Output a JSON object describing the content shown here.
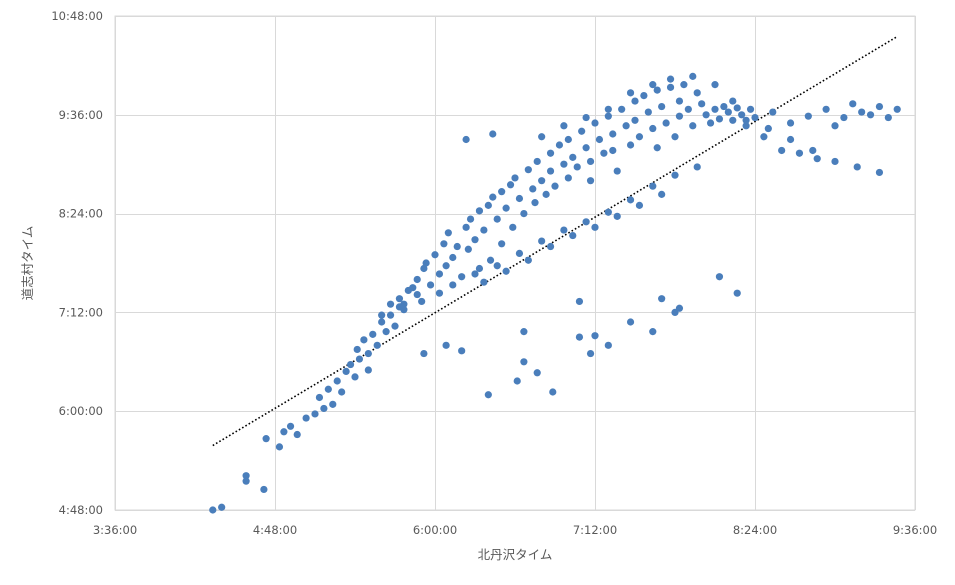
{
  "chart_data": {
    "type": "scatter",
    "xlabel": "北丹沢タイム",
    "ylabel": "道志村タイム",
    "xlim": [
      "3:36:00",
      "9:36:00"
    ],
    "ylim": [
      "4:48:00",
      "10:48:00"
    ],
    "x_ticks": [
      "3:36:00",
      "4:48:00",
      "6:00:00",
      "7:12:00",
      "8:24:00",
      "9:36:00"
    ],
    "y_ticks": [
      "4:48:00",
      "6:00:00",
      "7:12:00",
      "8:24:00",
      "9:36:00",
      "10:48:00"
    ],
    "grid": true,
    "legend": "none",
    "marker_color": "#4a7ebb",
    "trendline": {
      "type": "linear",
      "style": "dotted",
      "color": "#000000",
      "x": [
        "4:20:00",
        "9:28:00"
      ],
      "y": [
        "5:35:00",
        "10:33:00"
      ]
    },
    "points": {
      "x": [
        "4:20:00",
        "4:24:00",
        "4:35:00",
        "4:35:00",
        "4:43:00",
        "4:44:00",
        "4:50:00",
        "4:52:00",
        "4:55:00",
        "4:58:00",
        "5:02:00",
        "5:06:00",
        "5:08:00",
        "5:10:00",
        "5:12:00",
        "5:14:00",
        "5:16:00",
        "5:18:00",
        "5:20:00",
        "5:22:00",
        "5:24:00",
        "5:25:00",
        "5:26:00",
        "5:28:00",
        "5:30:00",
        "5:30:00",
        "5:32:00",
        "5:34:00",
        "5:36:00",
        "5:38:00",
        "5:40:00",
        "5:40:00",
        "5:42:00",
        "5:44:00",
        "5:46:00",
        "5:48:00",
        "5:50:00",
        "5:52:00",
        "5:54:00",
        "5:55:00",
        "5:56:00",
        "5:58:00",
        "6:00:00",
        "6:02:00",
        "6:04:00",
        "6:05:00",
        "6:06:00",
        "6:08:00",
        "6:10:00",
        "6:12:00",
        "6:14:00",
        "6:15:00",
        "6:16:00",
        "6:18:00",
        "6:20:00",
        "6:20:00",
        "6:22:00",
        "6:24:00",
        "6:25:00",
        "6:26:00",
        "6:28:00",
        "6:30:00",
        "6:30:00",
        "6:32:00",
        "6:34:00",
        "6:35:00",
        "6:36:00",
        "6:38:00",
        "6:40:00",
        "6:42:00",
        "6:44:00",
        "6:45:00",
        "6:46:00",
        "6:48:00",
        "6:50:00",
        "6:52:00",
        "6:52:00",
        "6:54:00",
        "6:56:00",
        "6:58:00",
        "7:00:00",
        "7:00:00",
        "7:02:00",
        "7:04:00",
        "7:06:00",
        "7:08:00",
        "7:10:00",
        "7:10:00",
        "7:12:00",
        "7:14:00",
        "7:16:00",
        "7:18:00",
        "7:20:00",
        "7:20:00",
        "7:22:00",
        "7:24:00",
        "7:26:00",
        "7:28:00",
        "7:30:00",
        "7:30:00",
        "7:32:00",
        "7:34:00",
        "7:36:00",
        "7:38:00",
        "7:40:00",
        "7:40:00",
        "7:42:00",
        "7:44:00",
        "7:46:00",
        "7:48:00",
        "7:50:00",
        "7:50:00",
        "7:52:00",
        "7:54:00",
        "7:56:00",
        "7:58:00",
        "8:00:00",
        "8:02:00",
        "8:04:00",
        "8:06:00",
        "8:08:00",
        "8:10:00",
        "8:12:00",
        "8:14:00",
        "8:16:00",
        "8:18:00",
        "8:20:00",
        "8:22:00",
        "8:24:00",
        "8:28:00",
        "8:32:00",
        "8:36:00",
        "8:40:00",
        "8:44:00",
        "8:48:00",
        "8:52:00",
        "8:56:00",
        "9:00:00",
        "9:04:00",
        "9:08:00",
        "9:12:00",
        "9:16:00",
        "9:20:00",
        "9:24:00",
        "9:28:00",
        "5:55:00",
        "6:05:00",
        "6:12:00",
        "6:40:00",
        "6:46:00",
        "6:53:00",
        "7:05:00",
        "7:10:00",
        "7:18:00",
        "7:28:00",
        "7:38:00",
        "7:42:00",
        "7:50:00",
        "8:08:00",
        "8:16:00",
        "6:24:00",
        "6:37:00",
        "6:40:00",
        "7:05:00",
        "7:12:00",
        "7:48:00",
        "6:14:00",
        "6:26:00",
        "6:48:00",
        "6:58:00",
        "7:08:00",
        "7:18:00",
        "7:28:00",
        "7:38:00",
        "7:46:00",
        "7:56:00",
        "8:06:00",
        "8:14:00",
        "8:20:00",
        "8:30:00",
        "8:40:00",
        "8:50:00",
        "9:00:00",
        "9:10:00",
        "9:20:00",
        "5:46:00",
        "5:52:00",
        "6:08:00",
        "6:18:00",
        "6:28:00",
        "6:38:00",
        "6:48:00",
        "6:58:00",
        "7:08:00",
        "7:18:00",
        "7:28:00",
        "7:38:00",
        "7:48:00",
        "7:58:00",
        "5:36:00",
        "5:44:00",
        "6:02:00",
        "6:22:00",
        "6:32:00",
        "6:42:00",
        "6:52:00",
        "7:02:00",
        "7:12:00",
        "7:22:00",
        "7:32:00",
        "7:42:00"
      ],
      "y": [
        "4:48:00",
        "4:50:00",
        "5:09:00",
        "5:13:00",
        "5:03:00",
        "5:40:00",
        "5:34:00",
        "5:45:00",
        "5:49:00",
        "5:43:00",
        "5:55:00",
        "5:58:00",
        "6:10:00",
        "6:02:00",
        "6:16:00",
        "6:05:00",
        "6:22:00",
        "6:14:00",
        "6:29:00",
        "6:34:00",
        "6:25:00",
        "6:45:00",
        "6:38:00",
        "6:52:00",
        "6:42:00",
        "6:30:00",
        "6:56:00",
        "6:48:00",
        "7:05:00",
        "6:58:00",
        "7:10:00",
        "7:18:00",
        "7:02:00",
        "7:22:00",
        "7:14:00",
        "7:28:00",
        "7:30:00",
        "7:36:00",
        "7:20:00",
        "7:44:00",
        "7:48:00",
        "7:32:00",
        "7:54:00",
        "7:40:00",
        "8:02:00",
        "7:46:00",
        "8:10:00",
        "7:52:00",
        "8:00:00",
        "7:38:00",
        "8:14:00",
        "7:58:00",
        "8:20:00",
        "8:05:00",
        "7:44:00",
        "8:26:00",
        "8:12:00",
        "8:30:00",
        "7:50:00",
        "8:36:00",
        "8:20:00",
        "8:40:00",
        "8:02:00",
        "8:28:00",
        "8:45:00",
        "8:14:00",
        "8:50:00",
        "8:35:00",
        "8:24:00",
        "8:56:00",
        "8:42:00",
        "8:32:00",
        "9:02:00",
        "8:48:00",
        "8:38:00",
        "9:08:00",
        "8:55:00",
        "8:44:00",
        "9:14:00",
        "9:00:00",
        "8:50:00",
        "9:18:00",
        "9:05:00",
        "8:58:00",
        "9:24:00",
        "9:12:00",
        "9:02:00",
        "8:48:00",
        "9:30:00",
        "9:18:00",
        "9:08:00",
        "9:35:00",
        "9:22:00",
        "9:10:00",
        "8:55:00",
        "9:40:00",
        "9:28:00",
        "9:14:00",
        "9:46:00",
        "9:32:00",
        "9:20:00",
        "9:50:00",
        "9:38:00",
        "9:26:00",
        "9:12:00",
        "9:54:00",
        "9:42:00",
        "9:30:00",
        "9:56:00",
        "9:20:00",
        "9:46:00",
        "9:35:00",
        "9:58:00",
        "9:40:00",
        "9:28:00",
        "9:52:00",
        "9:44:00",
        "9:36:00",
        "9:30:00",
        "9:40:00",
        "9:33:00",
        "9:42:00",
        "9:38:00",
        "9:32:00",
        "9:41:00",
        "9:36:00",
        "9:28:00",
        "9:40:00",
        "9:34:00",
        "9:20:00",
        "9:38:00",
        "9:10:00",
        "9:30:00",
        "9:08:00",
        "9:35:00",
        "9:04:00",
        "9:40:00",
        "9:28:00",
        "9:34:00",
        "9:44:00",
        "9:38:00",
        "9:36:00",
        "9:42:00",
        "9:34:00",
        "9:40:00",
        "6:42:00",
        "6:48:00",
        "6:44:00",
        "6:36:00",
        "6:28:00",
        "6:14:00",
        "6:54:00",
        "6:42:00",
        "6:48:00",
        "7:05:00",
        "6:58:00",
        "7:22:00",
        "7:15:00",
        "7:38:00",
        "7:26:00",
        "6:12:00",
        "6:22:00",
        "6:58:00",
        "7:20:00",
        "6:55:00",
        "7:12:00",
        "9:18:00",
        "9:22:00",
        "9:20:00",
        "9:28:00",
        "9:34:00",
        "9:40:00",
        "9:52:00",
        "9:58:00",
        "10:02:00",
        "10:04:00",
        "9:58:00",
        "9:46:00",
        "9:32:00",
        "9:26:00",
        "9:18:00",
        "9:10:00",
        "9:02:00",
        "8:58:00",
        "8:54:00",
        "7:18:00",
        "7:25:00",
        "7:32:00",
        "7:40:00",
        "7:46:00",
        "7:55:00",
        "8:04:00",
        "8:12:00",
        "8:18:00",
        "8:25:00",
        "8:34:00",
        "8:44:00",
        "8:52:00",
        "8:58:00",
        "7:10:00",
        "7:16:00",
        "7:26:00",
        "7:34:00",
        "7:42:00",
        "7:50:00",
        "8:00:00",
        "8:08:00",
        "8:14:00",
        "8:22:00",
        "8:30:00",
        "8:38:00"
      ]
    }
  }
}
